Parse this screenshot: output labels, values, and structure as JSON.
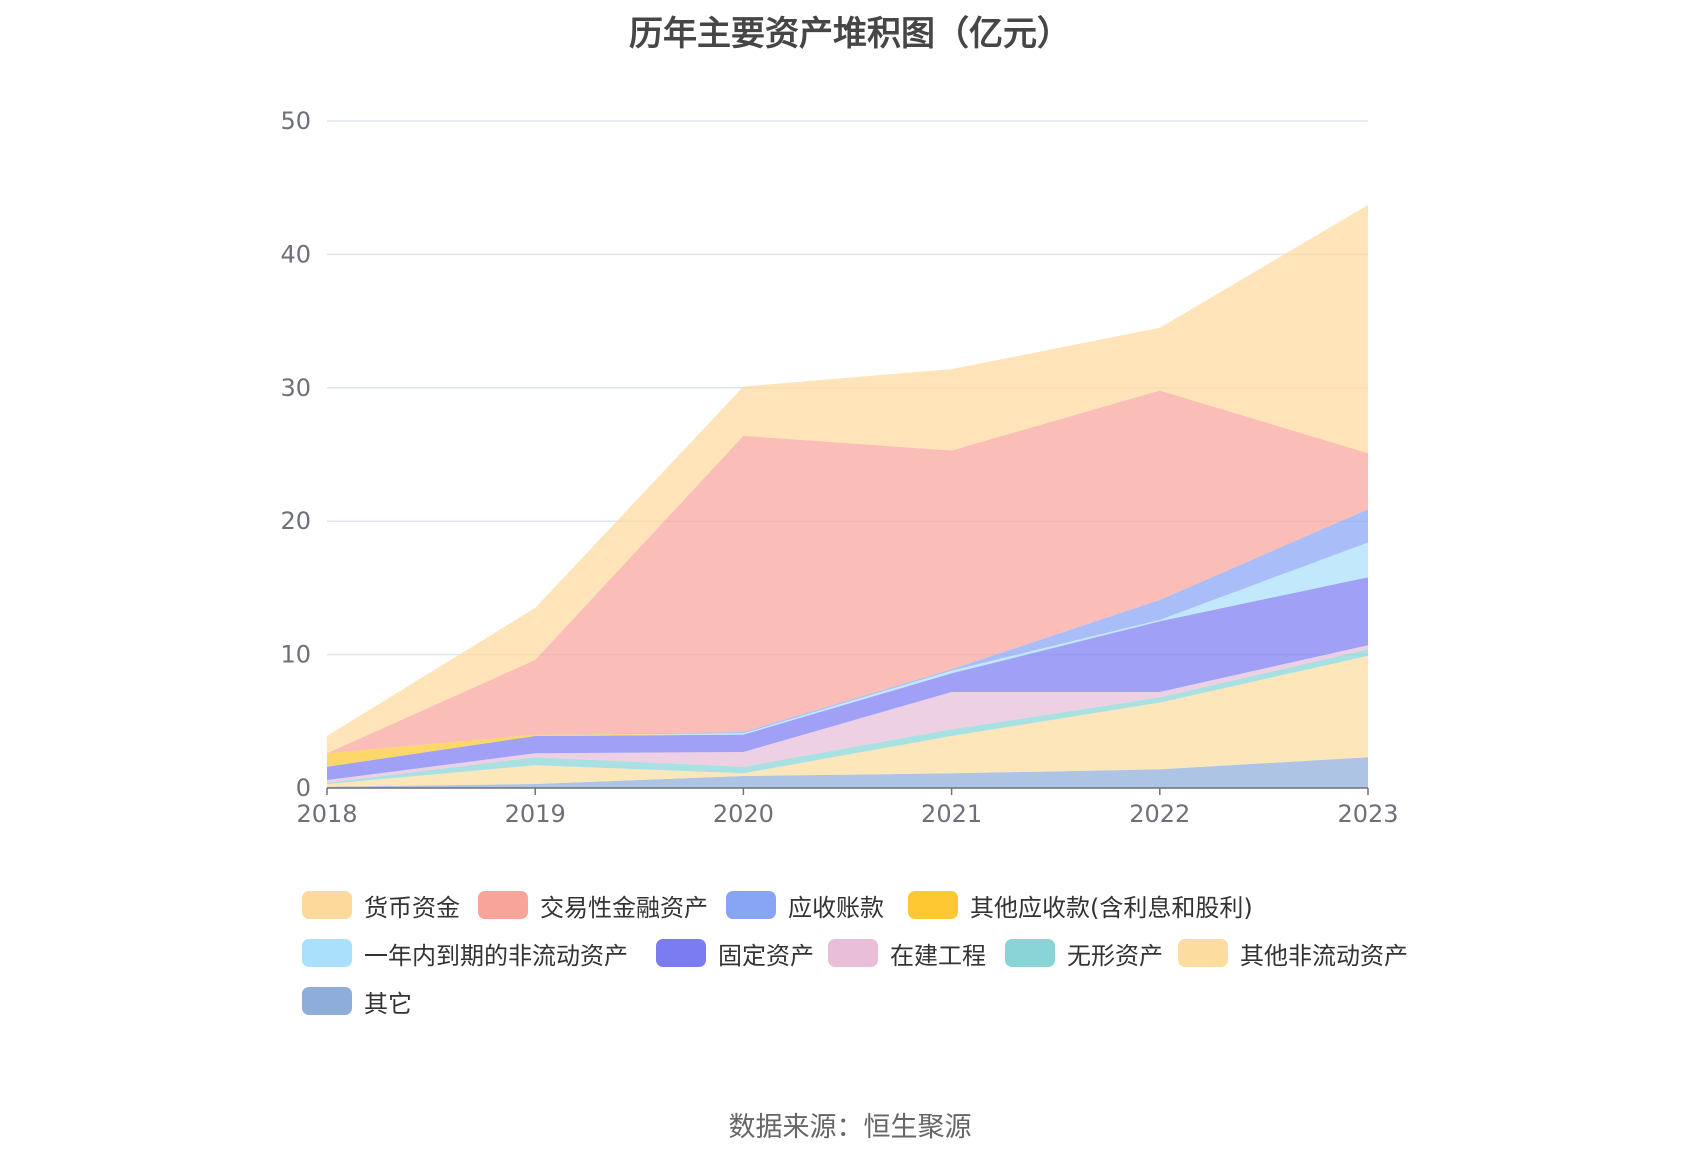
{
  "chart_data": {
    "type": "area",
    "stacked": true,
    "title": "历年主要资产堆积图（亿元）",
    "x": [
      "2018",
      "2019",
      "2020",
      "2021",
      "2022",
      "2023"
    ],
    "ylim": [
      0,
      50
    ],
    "yticks": [
      "0",
      "10",
      "20",
      "30",
      "40",
      "50"
    ],
    "grid": true,
    "legend_position": "bottom",
    "series": [
      {
        "name": "其它",
        "color": "#8fadd9",
        "values": [
          0.1,
          0.3,
          0.9,
          1.1,
          1.4,
          2.3
        ]
      },
      {
        "name": "其他非流动资产",
        "color": "#fcdc9f",
        "values": [
          0.2,
          1.4,
          0.2,
          2.8,
          5.0,
          7.6
        ]
      },
      {
        "name": "无形资产",
        "color": "#88d4d6",
        "values": [
          0.1,
          0.6,
          0.5,
          0.5,
          0.4,
          0.5
        ]
      },
      {
        "name": "在建工程",
        "color": "#e8bed9",
        "values": [
          0.2,
          0.3,
          1.1,
          2.8,
          0.4,
          0.3
        ]
      },
      {
        "name": "固定资产",
        "color": "#7b7cf2",
        "values": [
          1.0,
          1.3,
          1.3,
          1.4,
          5.3,
          5.1
        ]
      },
      {
        "name": "一年内到期的非流动资产",
        "color": "#abe0fa",
        "values": [
          0.0,
          0.0,
          0.1,
          0.2,
          0.1,
          2.6
        ]
      },
      {
        "name": "其他应收款(含利息和股利)",
        "color": "#fdc832",
        "values": [
          1.0,
          0.1,
          0.0,
          0.0,
          0.0,
          0.0
        ]
      },
      {
        "name": "应收账款",
        "color": "#88a5f5",
        "values": [
          0.0,
          0.0,
          0.1,
          0.1,
          1.5,
          2.5
        ]
      },
      {
        "name": "交易性金融资产",
        "color": "#f9a49b",
        "values": [
          0.0,
          5.6,
          22.2,
          16.4,
          15.7,
          4.2
        ]
      },
      {
        "name": "货币资金",
        "color": "#fdd99c",
        "values": [
          1.3,
          3.9,
          3.7,
          6.1,
          4.7,
          18.6
        ]
      }
    ]
  },
  "legend_order": [
    "货币资金",
    "交易性金融资产",
    "应收账款",
    "其他应收款(含利息和股利)",
    "一年内到期的非流动资产",
    "固定资产",
    "在建工程",
    "无形资产",
    "其他非流动资产",
    "其它"
  ],
  "source_text": "数据来源：恒生聚源"
}
